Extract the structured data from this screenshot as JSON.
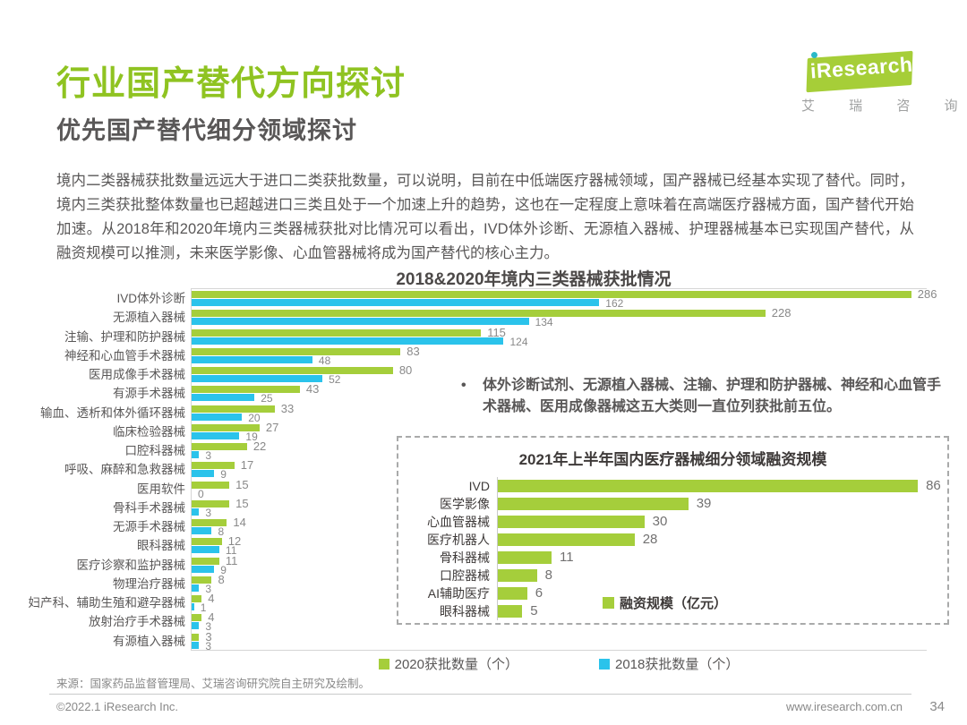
{
  "header": {
    "title": "行业国产替代方向探讨",
    "subtitle": "优先国产替代细分领域探讨",
    "logo_brand": "iResearch",
    "logo_cn": "艾 瑞 咨 询"
  },
  "intro": {
    "body": "境内二类器械获批数量远远大于进口二类获批数量，可以说明，目前在中低端医疗器械领域，国产器械已经基本实现了替代。同时，境内三类获批整体数量也已超越进口三类且处于一个加速上升的趋势，这也在一定程度上意味着在高端医疗器械方面，国产替代开始加速。从2018年和2020年境内三类器械获批对比情况可以看出，IVD体外诊断、无源植入器械、护理器械基本已实现国产替代，从融资规模可以推测，未来医学影像、心血管器械将成为国产替代的核心主力。"
  },
  "note": {
    "bullet": "•",
    "text": "体外诊断试剂、无源植入器械、注输、护理和防护器械、神经和心血管手术器械、医用成像器械这五大类则一直位列获批前五位。"
  },
  "colors": {
    "green": "#A5CE3B",
    "blue": "#2BC3EB",
    "title_green": "#8FC321"
  },
  "chart_data": [
    {
      "type": "bar",
      "orientation": "horizontal",
      "title": "2018&2020年境内三类器械获批情况",
      "categories": [
        "IVD体外诊断",
        "无源植入器械",
        "注输、护理和防护器械",
        "神经和心血管手术器械",
        "医用成像手术器械",
        "有源手术器械",
        "输血、透析和体外循环器械",
        "临床检验器械",
        "口腔科器械",
        "呼吸、麻醉和急救器械",
        "医用软件",
        "骨科手术器械",
        "无源手术器械",
        "眼科器械",
        "医疗诊察和监护器械",
        "物理治疗器械",
        "妇产科、辅助生殖和避孕器械",
        "放射治疗手术器械",
        "有源植入器械"
      ],
      "series": [
        {
          "name": "2020获批数量（个）",
          "color": "#A5CE3B",
          "values": [
            286,
            228,
            115,
            83,
            80,
            43,
            33,
            27,
            22,
            17,
            15,
            15,
            14,
            12,
            11,
            8,
            4,
            4,
            3
          ]
        },
        {
          "name": "2018获批数量（个）",
          "color": "#2BC3EB",
          "values": [
            162,
            134,
            124,
            48,
            52,
            25,
            20,
            19,
            3,
            9,
            0,
            3,
            8,
            11,
            9,
            3,
            1,
            3,
            3
          ]
        }
      ],
      "xlim": [
        0,
        290
      ],
      "grid": false,
      "legend_position": "bottom"
    },
    {
      "type": "bar",
      "orientation": "horizontal",
      "title": "2021年上半年国内医疗器械细分领域融资规模",
      "categories": [
        "IVD",
        "医学影像",
        "心血管器械",
        "医疗机器人",
        "骨科器械",
        "口腔器械",
        "AI辅助医疗",
        "眼科器械"
      ],
      "series": [
        {
          "name": "融资规模（亿元）",
          "color": "#A5CE3B",
          "values": [
            86,
            39,
            30,
            28,
            11,
            8,
            6,
            5
          ]
        }
      ],
      "xlim": [
        0,
        88
      ],
      "grid": false,
      "legend_position": "inside-bottom"
    }
  ],
  "source": {
    "text": "来源：国家药品监督管理局、艾瑞咨询研究院自主研究及绘制。"
  },
  "footer": {
    "copyright": "©2022.1 iResearch Inc.",
    "website": "www.iresearch.com.cn",
    "page_number": "34"
  }
}
